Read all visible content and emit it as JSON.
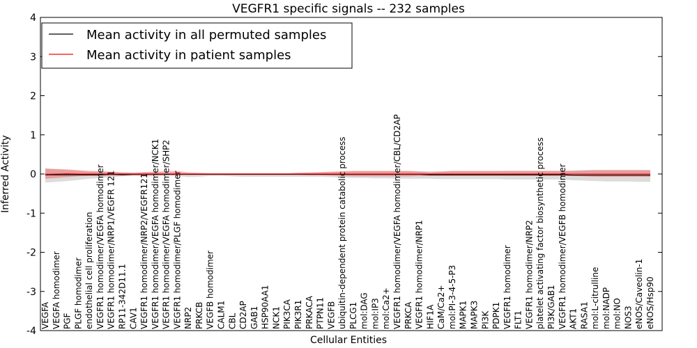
{
  "chart_data": {
    "type": "line",
    "title": "VEGFR1 specific signals -- 232 samples",
    "xlabel": "Cellular Entities",
    "ylabel": "Inferred Activity",
    "ylim": [
      -4,
      4
    ],
    "yticks": [
      -4,
      -3,
      -2,
      -1,
      0,
      1,
      2,
      3,
      4
    ],
    "grid": false,
    "legend_position": "top-left",
    "categories": [
      "VEGFA",
      "VEGFA homodimer",
      "PGF",
      "PLGF homodimer",
      "endothelial cell proliferation",
      "VEGFR1 homodimer/VEGFA homodimer",
      "VEGFR1 homodimer/NRP1/VEGFR 121",
      "RP11-342D11.1",
      "CAV1",
      "VEGFR1 homodimer/NRP2/VEGFR121",
      "VEGFR1 homodimer/VEGFA homodimer/NCK1",
      "VEGFR1 homodimer/VEGFA homodimer/SHP2",
      "VEGFR1 homodimer/PLGF homodimer",
      "NRP2",
      "PRKCB",
      "VEGFB homodimer",
      "CALM1",
      "CBL",
      "CD2AP",
      "GAB1",
      "HSP90AA1",
      "NCK1",
      "PIK3CA",
      "PIK3R1",
      "PRKACA",
      "PTPN11",
      "VEGFB",
      "ubiquitin-dependent protein catabolic process",
      "PLCG1",
      "mol:DAG",
      "mol:IP3",
      "mol:Ca2+",
      "VEGFR1 homodimer/VEGFA homodimer/CBL/CD2AP",
      "PRKCA",
      "VEGFR1 homodimer/NRP1",
      "HIF1A",
      "CaM/Ca2+",
      "mol:PI-3-4-5-P3",
      "MAPK1",
      "MAPK3",
      "PI3K",
      "PDPK1",
      "VEGFR1 homodimer",
      "FLT1",
      "VEGFR1 homodimer/NRP2",
      "platelet activating factor biosynthetic process",
      "PI3K/GAB1",
      "VEGFR1 homodimer/VEGFB homodimer",
      "AKT1",
      "RASA1",
      "mol:L-citrulline",
      "mol:NADP",
      "mol:NO",
      "NOS3",
      "eNOS/Caveolin-1",
      "eNOS/Hsp90"
    ],
    "series": [
      {
        "name": "Mean activity in all permuted samples",
        "color": "#000000",
        "values": [
          -0.02,
          -0.02,
          -0.02,
          -0.02,
          -0.02,
          -0.02,
          -0.01,
          -0.02,
          -0.01,
          -0.01,
          -0.01,
          -0.01,
          -0.01,
          -0.01,
          -0.01,
          -0.01,
          -0.01,
          -0.01,
          -0.01,
          -0.01,
          -0.01,
          -0.01,
          -0.01,
          -0.01,
          -0.01,
          -0.01,
          -0.01,
          -0.01,
          -0.01,
          -0.01,
          -0.01,
          -0.01,
          -0.01,
          -0.01,
          -0.01,
          -0.02,
          -0.02,
          -0.02,
          -0.02,
          -0.02,
          -0.02,
          -0.02,
          -0.02,
          -0.02,
          -0.02,
          -0.02,
          -0.02,
          -0.02,
          -0.03,
          -0.03,
          -0.03,
          -0.03,
          -0.03,
          -0.03,
          -0.03,
          -0.03
        ],
        "band_low": [
          -0.22,
          -0.2,
          -0.18,
          -0.15,
          -0.12,
          -0.1,
          -0.08,
          -0.06,
          -0.05,
          -0.06,
          -0.06,
          -0.05,
          -0.05,
          -0.08,
          -0.07,
          -0.05,
          -0.05,
          -0.06,
          -0.07,
          -0.07,
          -0.07,
          -0.07,
          -0.07,
          -0.07,
          -0.07,
          -0.07,
          -0.08,
          -0.09,
          -0.1,
          -0.1,
          -0.11,
          -0.11,
          -0.12,
          -0.12,
          -0.12,
          -0.12,
          -0.13,
          -0.13,
          -0.13,
          -0.13,
          -0.13,
          -0.13,
          -0.14,
          -0.14,
          -0.14,
          -0.14,
          -0.14,
          -0.14,
          -0.16,
          -0.17,
          -0.18,
          -0.19,
          -0.19,
          -0.19,
          -0.2,
          -0.2
        ],
        "band_high": [
          0.14,
          0.12,
          0.1,
          0.08,
          0.06,
          0.06,
          0.05,
          0.04,
          0.03,
          0.04,
          0.04,
          0.03,
          0.03,
          0.02,
          0.02,
          0.02,
          0.02,
          0.02,
          0.02,
          0.02,
          0.02,
          0.02,
          0.02,
          0.03,
          0.03,
          0.04,
          0.05,
          0.06,
          0.07,
          0.07,
          0.07,
          0.07,
          0.07,
          0.07,
          0.07,
          0.07,
          0.07,
          0.07,
          0.07,
          0.07,
          0.07,
          0.07,
          0.08,
          0.08,
          0.08,
          0.08,
          0.08,
          0.08,
          0.09,
          0.1,
          0.1,
          0.1,
          0.1,
          0.1,
          0.1,
          0.1
        ]
      },
      {
        "name": "Mean activity in patient samples",
        "color": "#ff0000",
        "values": [
          -0.01,
          0.0,
          0.01,
          0.0,
          0.0,
          0.0,
          0.0,
          0.0,
          0.0,
          0.0,
          0.0,
          0.0,
          0.0,
          0.0,
          0.0,
          0.0,
          0.0,
          0.0,
          0.0,
          0.0,
          0.0,
          0.0,
          0.0,
          0.0,
          0.0,
          0.0,
          0.0,
          0.0,
          0.0,
          0.0,
          0.0,
          0.0,
          0.0,
          0.0,
          0.0,
          0.0,
          0.0,
          0.0,
          0.0,
          0.0,
          0.0,
          0.0,
          0.0,
          0.0,
          0.0,
          0.0,
          0.0,
          0.0,
          0.0,
          0.0,
          0.0,
          0.0,
          0.0,
          0.0,
          0.0,
          0.0
        ],
        "band_low": [
          -0.12,
          -0.1,
          -0.08,
          -0.06,
          -0.05,
          -0.05,
          -0.04,
          -0.03,
          -0.03,
          -0.03,
          -0.03,
          -0.02,
          -0.02,
          -0.02,
          -0.02,
          -0.02,
          -0.02,
          -0.02,
          -0.02,
          -0.02,
          -0.02,
          -0.02,
          -0.02,
          -0.02,
          -0.03,
          -0.03,
          -0.04,
          -0.05,
          -0.06,
          -0.06,
          -0.06,
          -0.06,
          -0.06,
          -0.06,
          -0.05,
          -0.05,
          -0.05,
          -0.05,
          -0.05,
          -0.05,
          -0.05,
          -0.05,
          -0.05,
          -0.05,
          -0.05,
          -0.05,
          -0.05,
          -0.05,
          -0.05,
          -0.06,
          -0.07,
          -0.07,
          -0.07,
          -0.07,
          -0.07,
          -0.07
        ],
        "band_high": [
          0.14,
          0.13,
          0.12,
          0.1,
          0.08,
          0.07,
          0.06,
          0.04,
          0.03,
          0.05,
          0.06,
          0.07,
          0.08,
          0.04,
          0.03,
          0.02,
          0.02,
          0.02,
          0.02,
          0.02,
          0.02,
          0.02,
          0.02,
          0.03,
          0.04,
          0.05,
          0.06,
          0.07,
          0.08,
          0.08,
          0.08,
          0.08,
          0.08,
          0.08,
          0.06,
          0.04,
          0.06,
          0.08,
          0.08,
          0.08,
          0.08,
          0.08,
          0.08,
          0.08,
          0.08,
          0.08,
          0.08,
          0.08,
          0.08,
          0.09,
          0.1,
          0.1,
          0.1,
          0.1,
          0.1,
          0.1
        ]
      }
    ]
  }
}
